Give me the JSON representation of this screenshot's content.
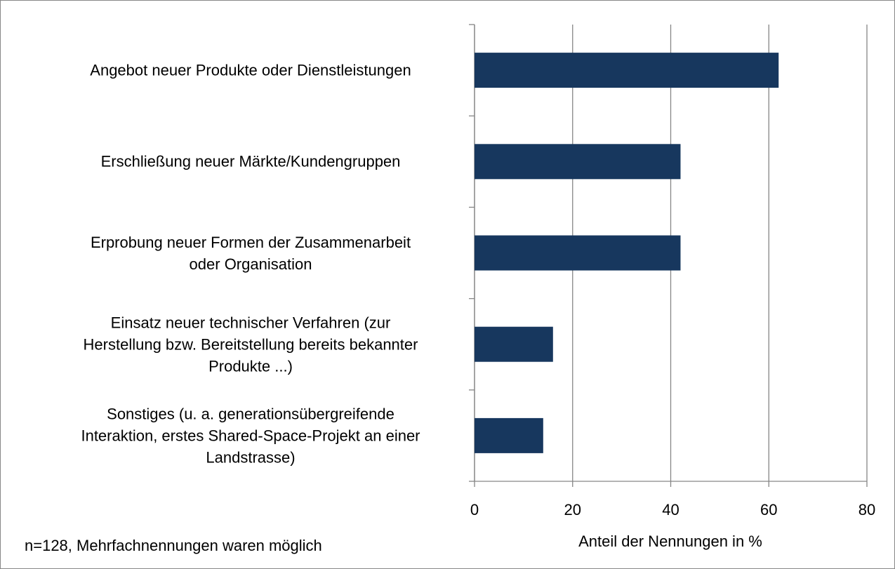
{
  "chart_data": {
    "type": "bar",
    "orientation": "horizontal",
    "categories": [
      "Angebot neuer Produkte oder Dienstleistungen",
      "Erschließung neuer Märkte/Kundengruppen",
      "Erprobung neuer Formen der Zusammenarbeit\noder Organisation",
      "Einsatz neuer technischer Verfahren  (zur\nHerstellung bzw. Bereitstellung bereits bekannter\nProdukte ...)",
      "Sonstiges (u. a. generationsübergreifende\nInteraktion, erstes Shared-Space-Projekt an einer\nLandstrasse)"
    ],
    "values": [
      62,
      42,
      42,
      16,
      14
    ],
    "color": "#17375e",
    "xlim": [
      0,
      80
    ],
    "xticks": [
      0,
      20,
      40,
      60,
      80
    ],
    "grid": true,
    "xlabel": "Anteil der Nennungen in %",
    "annotation": "n=128, Mehrfachnennungen waren möglich"
  }
}
